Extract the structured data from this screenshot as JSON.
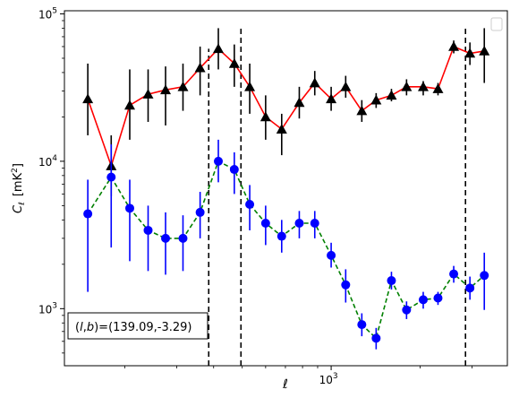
{
  "chart_data": {
    "type": "scatter",
    "xlabel": "ℓ",
    "ylabel": "C",
    "ylabel_sub": "ℓ",
    "ylabel_unit": "[mK",
    "ylabel_unit_sup": "2",
    "ylabel_unit_close": "]",
    "x_scale": "log",
    "y_scale": "log",
    "xlim": [
      125,
      3950
    ],
    "ylim": [
      410,
      105000
    ],
    "x_ticks": [
      {
        "value": 1000,
        "base": "10",
        "exp": "3"
      }
    ],
    "y_ticks": [
      {
        "value": 1000,
        "base": "10",
        "exp": "3"
      },
      {
        "value": 10000,
        "base": "10",
        "exp": "4"
      },
      {
        "value": 100000,
        "base": "10",
        "exp": "5"
      }
    ],
    "vlines": [
      {
        "x": 385,
        "y_top": 58000
      },
      {
        "x": 495,
        "y_top": 80000
      },
      {
        "x": 2850,
        "y_top": 80000
      }
    ],
    "annotation": {
      "prefix": "(",
      "l": "l",
      "comma": ",",
      "b": "b",
      "suffix": ")=(139.09,-3.29)"
    },
    "legend": {
      "placement": "upper right",
      "entries": []
    },
    "series": [
      {
        "marker": "triangle",
        "marker_color": "#000000",
        "line_color": "#ff0000",
        "line_style": "solid",
        "error_color": "#000000",
        "points": [
          {
            "x": 150,
            "y": 26500,
            "lo": 15000,
            "hi": 46000
          },
          {
            "x": 180,
            "y": 9300,
            "lo": 5800,
            "hi": 15000
          },
          {
            "x": 208,
            "y": 24000,
            "lo": 14000,
            "hi": 42000
          },
          {
            "x": 240,
            "y": 28500,
            "lo": 18500,
            "hi": 42000
          },
          {
            "x": 275,
            "y": 30500,
            "lo": 17500,
            "hi": 44000
          },
          {
            "x": 315,
            "y": 32000,
            "lo": 22000,
            "hi": 46000
          },
          {
            "x": 360,
            "y": 43000,
            "lo": 28000,
            "hi": 60000
          },
          {
            "x": 415,
            "y": 58000,
            "lo": 42000,
            "hi": 80000
          },
          {
            "x": 470,
            "y": 46000,
            "lo": 32000,
            "hi": 62000
          },
          {
            "x": 530,
            "y": 32000,
            "lo": 21000,
            "hi": 46000
          },
          {
            "x": 600,
            "y": 20000,
            "lo": 14000,
            "hi": 28000
          },
          {
            "x": 680,
            "y": 16500,
            "lo": 11000,
            "hi": 21000
          },
          {
            "x": 780,
            "y": 25000,
            "lo": 19500,
            "hi": 32000
          },
          {
            "x": 880,
            "y": 34000,
            "lo": 28000,
            "hi": 41000
          },
          {
            "x": 1000,
            "y": 26500,
            "lo": 22000,
            "hi": 32000
          },
          {
            "x": 1120,
            "y": 32000,
            "lo": 27000,
            "hi": 38000
          },
          {
            "x": 1270,
            "y": 22000,
            "lo": 18500,
            "hi": 26000
          },
          {
            "x": 1420,
            "y": 26000,
            "lo": 23000,
            "hi": 29000
          },
          {
            "x": 1600,
            "y": 28000,
            "lo": 25500,
            "hi": 31000
          },
          {
            "x": 1800,
            "y": 32000,
            "lo": 28000,
            "hi": 36000
          },
          {
            "x": 2050,
            "y": 32000,
            "lo": 28000,
            "hi": 35000
          },
          {
            "x": 2300,
            "y": 31000,
            "lo": 28000,
            "hi": 34000
          },
          {
            "x": 2600,
            "y": 60000,
            "lo": 54000,
            "hi": 66000
          },
          {
            "x": 2950,
            "y": 54000,
            "lo": 45000,
            "hi": 64000
          },
          {
            "x": 3300,
            "y": 56000,
            "lo": 34000,
            "hi": 80000
          }
        ]
      },
      {
        "marker": "circle",
        "marker_color": "#0000ff",
        "line_color": "#008000",
        "line_style": "dashed",
        "error_color": "#0000ff",
        "points": [
          {
            "x": 150,
            "y": 4400,
            "lo": 1300,
            "hi": 7500
          },
          {
            "x": 180,
            "y": 7800,
            "lo": 2600,
            "hi": 13000
          },
          {
            "x": 208,
            "y": 4800,
            "lo": 2100,
            "hi": 7500
          },
          {
            "x": 240,
            "y": 3400,
            "lo": 1800,
            "hi": 5000
          },
          {
            "x": 275,
            "y": 3000,
            "lo": 1700,
            "hi": 4500
          },
          {
            "x": 315,
            "y": 3000,
            "lo": 1800,
            "hi": 4300
          },
          {
            "x": 360,
            "y": 4500,
            "lo": 3000,
            "hi": 6200
          },
          {
            "x": 415,
            "y": 10000,
            "lo": 7200,
            "hi": 14000
          },
          {
            "x": 470,
            "y": 8800,
            "lo": 6000,
            "hi": 11500
          },
          {
            "x": 530,
            "y": 5100,
            "lo": 3400,
            "hi": 6900
          },
          {
            "x": 600,
            "y": 3800,
            "lo": 2700,
            "hi": 5000
          },
          {
            "x": 680,
            "y": 3100,
            "lo": 2400,
            "hi": 4000
          },
          {
            "x": 780,
            "y": 3800,
            "lo": 3000,
            "hi": 4600
          },
          {
            "x": 880,
            "y": 3800,
            "lo": 3000,
            "hi": 4600
          },
          {
            "x": 1000,
            "y": 2300,
            "lo": 1900,
            "hi": 2800
          },
          {
            "x": 1120,
            "y": 1450,
            "lo": 1100,
            "hi": 1850
          },
          {
            "x": 1270,
            "y": 780,
            "lo": 650,
            "hi": 930
          },
          {
            "x": 1420,
            "y": 630,
            "lo": 530,
            "hi": 740
          },
          {
            "x": 1600,
            "y": 1550,
            "lo": 1350,
            "hi": 1780
          },
          {
            "x": 1800,
            "y": 980,
            "lo": 850,
            "hi": 1120
          },
          {
            "x": 2050,
            "y": 1150,
            "lo": 1000,
            "hi": 1300
          },
          {
            "x": 2300,
            "y": 1180,
            "lo": 1060,
            "hi": 1300
          },
          {
            "x": 2600,
            "y": 1720,
            "lo": 1500,
            "hi": 1950
          },
          {
            "x": 2950,
            "y": 1380,
            "lo": 1150,
            "hi": 1650
          },
          {
            "x": 3300,
            "y": 1680,
            "lo": 980,
            "hi": 2400
          }
        ]
      }
    ]
  }
}
